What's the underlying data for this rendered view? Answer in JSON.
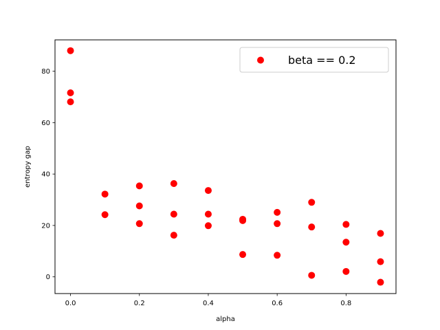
{
  "chart_data": {
    "type": "scatter",
    "title": "",
    "xlabel": "alpha",
    "ylabel": "entropy gap",
    "xlim": [
      -0.045,
      0.945
    ],
    "ylim": [
      -6.5,
      92.2
    ],
    "xticks": [
      0.0,
      0.2,
      0.4,
      0.6,
      0.8
    ],
    "xtick_labels": [
      "0.0",
      "0.2",
      "0.4",
      "0.6",
      "0.8"
    ],
    "yticks": [
      0,
      20,
      40,
      60,
      80
    ],
    "ytick_labels": [
      "0",
      "20",
      "40",
      "60",
      "80"
    ],
    "grid": false,
    "legend_position": "top-right",
    "series": [
      {
        "name": "beta == 0.2",
        "color": "#ff0000",
        "marker": "circle",
        "x": [
          0.0,
          0.0,
          0.0,
          0.1,
          0.1,
          0.2,
          0.2,
          0.2,
          0.3,
          0.3,
          0.3,
          0.4,
          0.4,
          0.4,
          0.5,
          0.5,
          0.5,
          0.6,
          0.6,
          0.6,
          0.7,
          0.7,
          0.7,
          0.8,
          0.8,
          0.8,
          0.9,
          0.9,
          0.9
        ],
        "y": [
          88.0,
          71.6,
          68.1,
          32.2,
          24.2,
          35.4,
          27.6,
          20.7,
          36.3,
          24.4,
          16.2,
          33.6,
          24.4,
          19.9,
          22.4,
          21.9,
          8.7,
          25.1,
          20.7,
          8.4,
          29.0,
          19.4,
          0.6,
          20.4,
          13.5,
          2.1,
          16.9,
          5.9,
          -2.1
        ]
      }
    ]
  }
}
